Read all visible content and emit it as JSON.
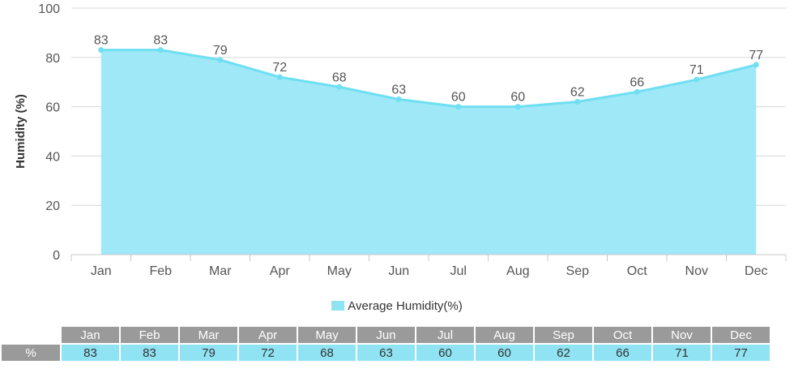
{
  "chart_data": {
    "type": "area",
    "categories": [
      "Jan",
      "Feb",
      "Mar",
      "Apr",
      "May",
      "Jun",
      "Jul",
      "Aug",
      "Sep",
      "Oct",
      "Nov",
      "Dec"
    ],
    "series": [
      {
        "name": "Average Humidity(%)",
        "values": [
          83,
          83,
          79,
          72,
          68,
          63,
          60,
          60,
          62,
          66,
          71,
          77
        ]
      }
    ],
    "ylabel": "Humidity (%)",
    "xlabel": "",
    "ylim": [
      0,
      100
    ],
    "yticks": [
      0,
      20,
      40,
      60,
      80,
      100
    ],
    "grid": true,
    "legend": "bottom",
    "colors": {
      "fill": "#9fe8f7",
      "line": "#6fdff2",
      "table_header": "#9a9a9a",
      "table_value": "#8fe3f3"
    }
  },
  "table": {
    "row_label": "%"
  }
}
